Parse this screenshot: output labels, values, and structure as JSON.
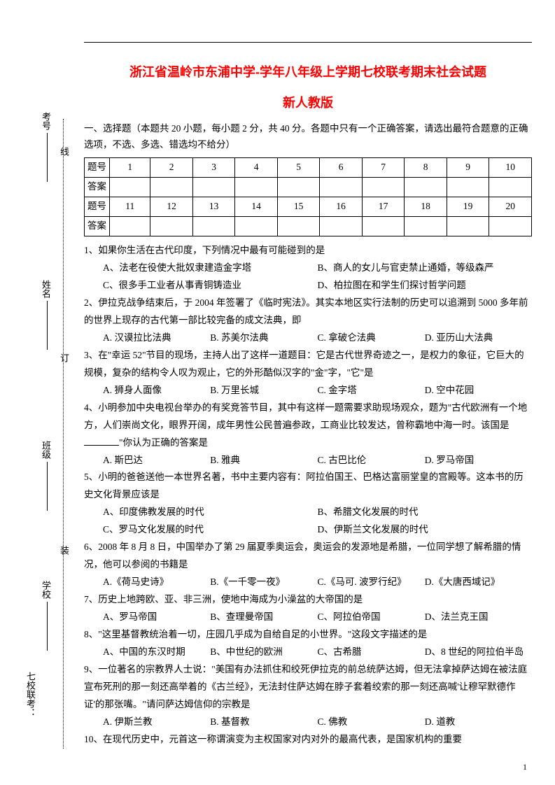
{
  "title_line1": "浙江省温岭市东浦中学-学年八年级上学期七校联考期末社会试题",
  "title_line2": "新人教版",
  "instruction": "一、选择题（本题共 20 小题，每小题 2 分，共 40 分。各题中只有一个正确答案，请选出最符合题意的正确选项，不选、多选、错选均不给分）",
  "table": {
    "row_label_q": "题号",
    "row_label_a": "答案",
    "nums_1_10": [
      "1",
      "2",
      "3",
      "4",
      "5",
      "6",
      "7",
      "8",
      "9",
      "10"
    ],
    "nums_11_20": [
      "11",
      "12",
      "13",
      "14",
      "15",
      "16",
      "17",
      "18",
      "19",
      "20"
    ]
  },
  "questions": [
    {
      "stem": "1、如果你生活在古代印度，下列情况中最有可能碰到的是",
      "opts": [
        [
          "A、法老在役使大批奴隶建造金字塔",
          "B、商人的女儿与官吏禁止通婚，等级森严"
        ],
        [
          "C、很多手工业者从事青铜铸造业",
          "D、柏拉图在和学生们探讨哲学问题"
        ]
      ]
    },
    {
      "stem": "2、伊拉克战争结束后，于 2004 年签署了《临时宪法》。其实本地区实行法制的历史可以追溯到 5000 多年前的世界上现存的古代第一部比较完备的成文法典，即",
      "opts": [
        [
          "A. 汉谟拉比法典",
          "B. 苏美尔法典",
          "C. 拿破仑法典",
          "D. 亚历山大法典"
        ]
      ]
    },
    {
      "stem": "3、在\"幸运 52\"节目的现场，主持人出了这样一道题目：它是古代世界奇迹之一，是权力的象征，它巨大的规模，复杂的结构令人叹为观止，它的外形酷似汉字的\"金\"字，\"它\"是",
      "opts": [
        [
          "A. 狮身人面像",
          "B. 万里长城",
          "C. 金字塔",
          "D. 空中花园"
        ]
      ]
    },
    {
      "stem": "4、小明参加中央电视台举办的有奖竞答节目，其中有这样一题需要求助现场观众，题为\"古代欧洲有一个地方，人们崇尚文化，眼界开阔，成年男性公民普遍参政，工商业比较发达，曾称霸地中海一时。该国是",
      "stem_tail": "\"你认为正确的答案是",
      "opts": [
        [
          "A. 斯巴达",
          "B. 雅典",
          "C. 古巴比伦",
          "D. 罗马帝国"
        ]
      ]
    },
    {
      "stem": "5、小明的爸爸送他一本世界名著，书中主要内容有：阿拉伯国王、巴格达富丽堂皇的宫殿等。这本书的历史文化背景应该是",
      "opts": [
        [
          "A、印度佛教发展的时代",
          "B、希腊文化发展的时代"
        ],
        [
          "C、罗马文化发展的时代",
          "D、伊斯兰文化发展的时代"
        ]
      ]
    },
    {
      "stem": "6、2008 年 8 月 8 日，中国举办了第 29 届夏季奥运会，奥运会的发源地是希腊，一位同学想了解希腊的情况，他可以参阅的书籍是",
      "opts": [
        [
          "A.《荷马史诗》",
          "B.《一千零一夜》",
          "C.《马可. 波罗行纪》",
          "D.《大唐西域记》"
        ]
      ]
    },
    {
      "stem": "7、历史上地跨欧、亚、非三洲，使地中海成为小澡盆的大帝国的是",
      "opts": [
        [
          "A、罗马帝国",
          "B、查理曼帝国",
          "C、阿拉伯帝国",
          "D、法兰克王国"
        ]
      ]
    },
    {
      "stem": "8、\"这里基督教统治着一切，庄园几乎成为自给自足的小世界。\"这段文字描述的是",
      "opts": [
        [
          "A、中国的东汉时期",
          "B、中世纪的欧洲",
          "C、古希腊",
          "D、8 世纪的阿拉伯半岛"
        ]
      ]
    },
    {
      "stem": "9、一位著名的宗教界人士说：\"美国有办法抓住和绞死伊拉克的前总统萨达姆，但无法拿掉萨达姆在被法庭宣布死刑的那一刻还高举着的《古兰经》，无法封住萨达姆在脖子套着绞索的那一刻还高喊'让穆罕默德作证'的那张嘴。\"请问萨达姆信仰的宗教是",
      "opts": [
        [
          "A. 伊斯兰教",
          "B. 基督教",
          "C. 佛教",
          "D. 道教"
        ]
      ]
    },
    {
      "stem": "10、在现代历史中，元首这一称谓演变为主权国家对内对外的最高代表，是国家机构的重要"
    }
  ],
  "sidebar": {
    "school": "学校",
    "class": "班级",
    "name": "姓名",
    "num": "考号",
    "exam": "七校联考：",
    "zhuang": "装",
    "ding": "订",
    "xian": "线"
  },
  "pagenum": "1"
}
